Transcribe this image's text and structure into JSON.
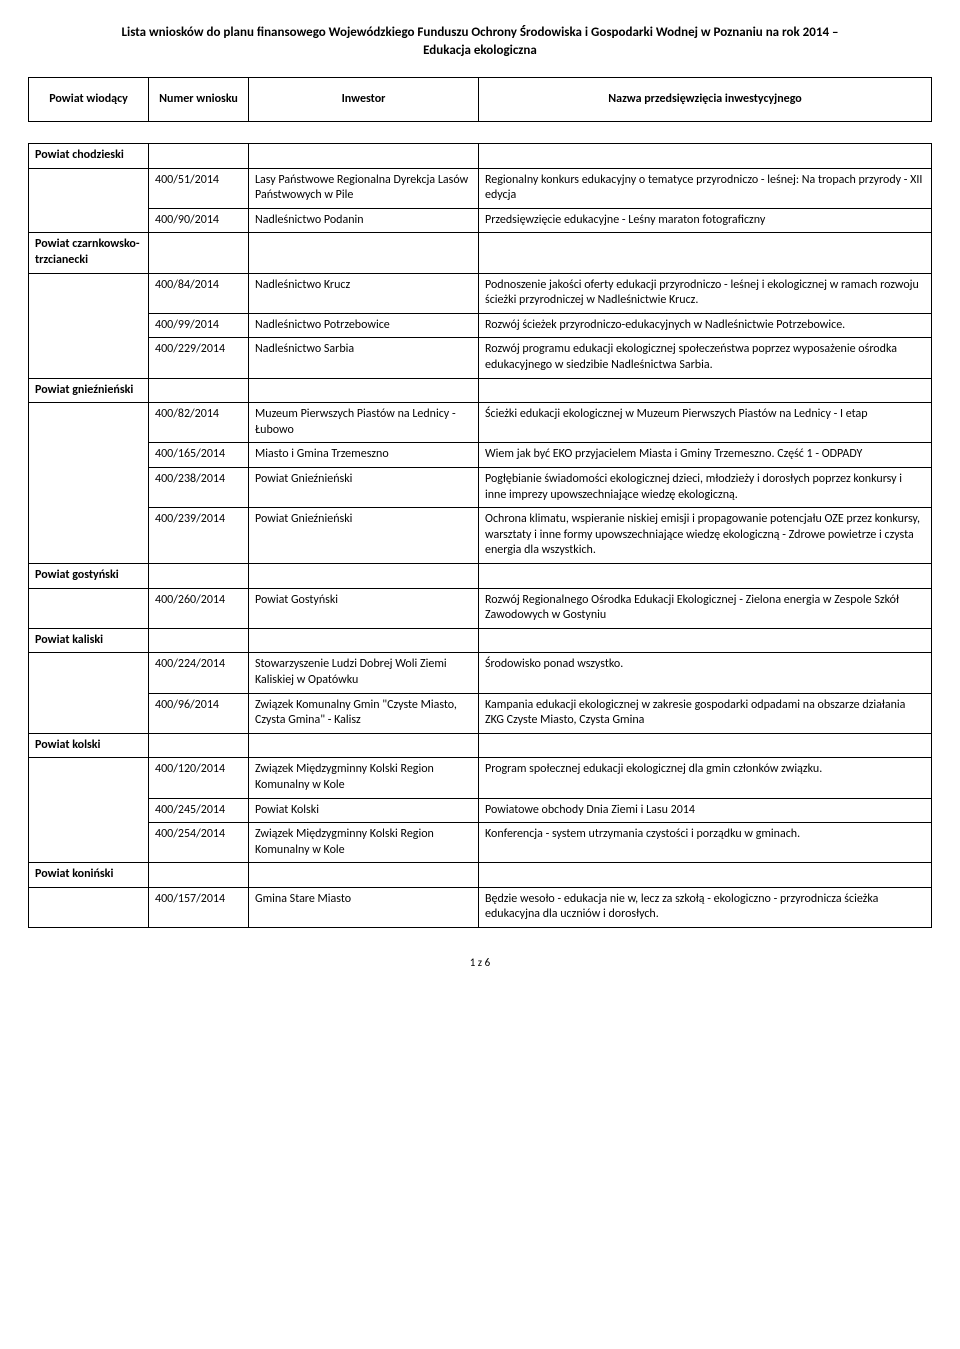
{
  "title_line1": "Lista wniosków do planu finansowego Wojewódzkiego Funduszu Ochrony Środowiska i Gospodarki Wodnej w Poznaniu na rok 2014 –",
  "title_line2": "Edukacja ekologiczna",
  "headers": {
    "powiat": "Powiat wiodący",
    "numer": "Numer wniosku",
    "inwestor": "Inwestor",
    "nazwa": "Nazwa przedsięwzięcia inwestycyjnego"
  },
  "footer": "1 z 6",
  "sections": {
    "chodzieski": {
      "label": "Powiat chodzieski",
      "rows": [
        {
          "num": "400/51/2014",
          "inv": "Lasy Państwowe Regionalna Dyrekcja Lasów Państwowych w Pile",
          "name": "Regionalny konkurs edukacyjny o tematyce przyrodniczo - leśnej: Na tropach przyrody - XII edycja"
        },
        {
          "num": "400/90/2014",
          "inv": "Nadleśnictwo Podanin",
          "name": "Przedsięwzięcie edukacyjne - Leśny maraton fotograficzny"
        }
      ]
    },
    "czarnkowsko": {
      "label": "Powiat czarnkowsko-trzcianecki",
      "rows": [
        {
          "num": "400/84/2014",
          "inv": "Nadleśnictwo Krucz",
          "name": "Podnoszenie jakości oferty edukacji przyrodniczo - leśnej i ekologicznej w ramach rozwoju ścieżki przyrodniczej w Nadleśnictwie Krucz."
        },
        {
          "num": "400/99/2014",
          "inv": "Nadleśnictwo Potrzebowice",
          "name": "Rozwój ścieżek przyrodniczo-edukacyjnych w Nadleśnictwie Potrzebowice."
        },
        {
          "num": "400/229/2014",
          "inv": "Nadleśnictwo Sarbia",
          "name": "Rozwój programu edukacji ekologicznej społeczeństwa poprzez wyposażenie ośrodka edukacyjnego w siedzibie Nadleśnictwa Sarbia."
        }
      ]
    },
    "gniezno": {
      "label": "Powiat gnieźnieński",
      "rows": [
        {
          "num": "400/82/2014",
          "inv": "Muzeum Pierwszych Piastów na Lednicy - Łubowo",
          "name": "Ścieżki edukacji ekologicznej w Muzeum Pierwszych Piastów na Lednicy - I etap"
        },
        {
          "num": "400/165/2014",
          "inv": "Miasto i Gmina Trzemeszno",
          "name": "Wiem jak być EKO przyjacielem Miasta i Gminy Trzemeszno. Część 1 - ODPADY"
        },
        {
          "num": "400/238/2014",
          "inv": "Powiat Gnieźnieński",
          "name": "Pogłębianie świadomości ekologicznej dzieci, młodzieży i dorosłych poprzez konkursy i inne imprezy upowszechniające wiedzę ekologiczną."
        },
        {
          "num": "400/239/2014",
          "inv": "Powiat Gnieźnieński",
          "name": "Ochrona klimatu, wspieranie niskiej emisji i propagowanie potencjału OZE przez konkursy, warsztaty i inne formy upowszechniające wiedzę ekologiczną - Zdrowe powietrze i czysta energia dla wszystkich."
        }
      ]
    },
    "gostyn": {
      "label": "Powiat gostyński",
      "rows": [
        {
          "num": "400/260/2014",
          "inv": "Powiat Gostyński",
          "name": "Rozwój Regionalnego Ośrodka Edukacji Ekologicznej - Zielona energia w Zespole Szkół Zawodowych w Gostyniu"
        }
      ]
    },
    "kalisz": {
      "label": "Powiat kaliski",
      "rows": [
        {
          "num": "400/224/2014",
          "inv": "Stowarzyszenie Ludzi Dobrej Woli Ziemi Kaliskiej w Opatówku",
          "name": "Środowisko ponad wszystko."
        },
        {
          "num": "400/96/2014",
          "inv": "Związek Komunalny Gmin \"Czyste Miasto, Czysta Gmina\" - Kalisz",
          "name": "Kampania edukacji ekologicznej w zakresie gospodarki odpadami na obszarze działania ZKG Czyste Miasto, Czysta Gmina"
        }
      ]
    },
    "kolski": {
      "label": "Powiat kolski",
      "rows": [
        {
          "num": "400/120/2014",
          "inv": "Związek Międzygminny  Kolski Region Komunalny w Kole",
          "name": "Program społecznej edukacji ekologicznej dla gmin członków związku."
        },
        {
          "num": "400/245/2014",
          "inv": "Powiat Kolski",
          "name": "Powiatowe obchody Dnia Ziemi i Lasu 2014"
        },
        {
          "num": "400/254/2014",
          "inv": "Związek Międzygminny  Kolski Region Komunalny w Kole",
          "name": "Konferencja - system utrzymania czystości i porządku w gminach."
        }
      ]
    },
    "konin": {
      "label": "Powiat koniński",
      "rows": [
        {
          "num": "400/157/2014",
          "inv": "Gmina Stare Miasto",
          "name": "Będzie wesoło - edukacja nie w, lecz za szkołą - ekologiczno - przyrodnicza ścieżka edukacyjna dla uczniów i dorosłych."
        }
      ]
    }
  }
}
